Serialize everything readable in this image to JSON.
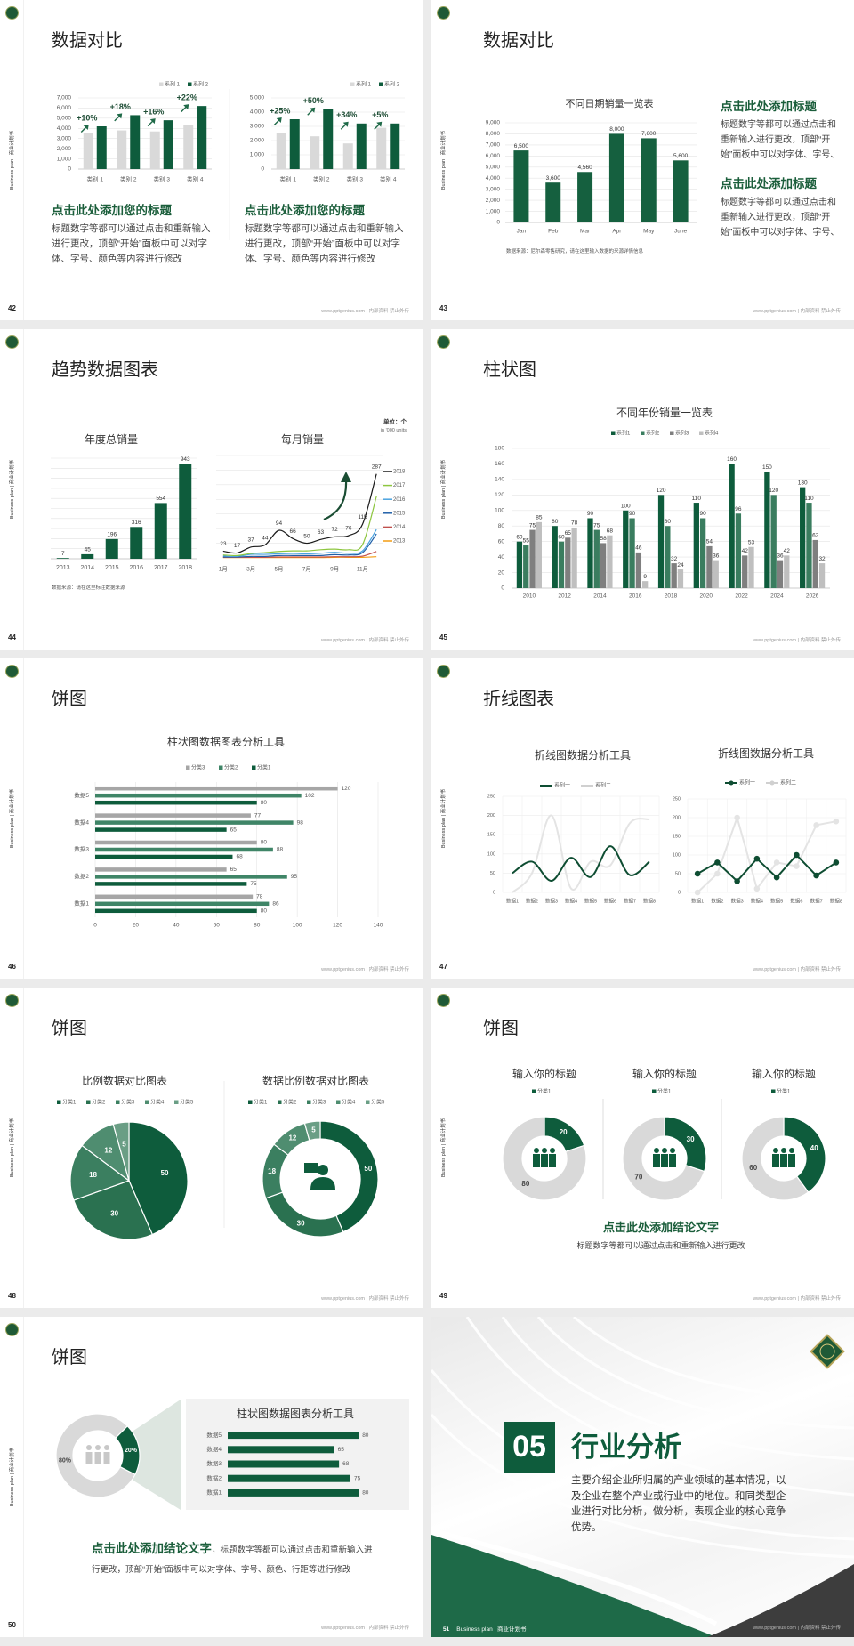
{
  "common": {
    "side_label": "Business plan | 商业计划书",
    "footer": "www.pptgenius.com | 内部资料 禁止外传"
  },
  "colors": {
    "brand_green": "#0e5c3c",
    "mid_green": "#3a7d5f",
    "gray": "#d9d9d9"
  },
  "slides": [
    {
      "page": "42",
      "title": "数据对比",
      "blocks": [
        {
          "heading": "点击此处添加您的标题",
          "body": "标题数字等都可以通过点击和重新输入进行更改，顶部“开始”面板中可以对字体、字号、颜色等内容进行修改"
        },
        {
          "heading": "点击此处添加您的标题",
          "body": "标题数字等都可以通过点击和重新输入进行更改，顶部“开始”面板中可以对字体、字号、颜色等内容进行修改"
        }
      ]
    },
    {
      "page": "43",
      "title": "数据对比",
      "source": "数据来源：尼尔森零售研究，请在这里输入数据的来源详情信息",
      "blocks": [
        {
          "heading": "点击此处添加标题",
          "body": "标题数字等都可以通过点击和重新输入进行更改，顶部“开始”面板中可以对字体、字号、颜色"
        },
        {
          "heading": "点击此处添加标题",
          "body": "标题数字等都可以通过点击和重新输入进行更改，顶部“开始”面板中可以对字体、字号、颜色"
        }
      ]
    },
    {
      "page": "44",
      "title": "趋势数据图表",
      "source": "数据来源：请在这里标注数据来源",
      "unit": "单位：个",
      "unit_en": "in '000 units"
    },
    {
      "page": "45",
      "title": "柱状图"
    },
    {
      "page": "46",
      "title": "饼图"
    },
    {
      "page": "47",
      "title": "折线图表"
    },
    {
      "page": "48",
      "title": "饼图"
    },
    {
      "page": "49",
      "title": "饼图",
      "conclusion": {
        "heading": "点击此处添加结论文字",
        "body": "标题数字等都可以通过点击和重新输入进行更改"
      }
    },
    {
      "page": "50",
      "title": "饼图",
      "conclusion": {
        "heading": "点击此处添加结论文字",
        "body": "，标题数字等都可以通过点击和重新输入进行更改，顶部“开始”面板中可以对字体、字号、颜色、行距等进行修改"
      }
    },
    {
      "page": "51",
      "number": "05",
      "title": "行业分析",
      "body": "主要介绍企业所归属的产业领域的基本情况，以及企业在整个产业或行业中的地位。和同类型企业进行对比分析，做分析，表现企业的核心竞争优势。"
    }
  ],
  "chart_data": [
    {
      "type": "bar",
      "categories": [
        "类别 1",
        "类别 2",
        "类别 3",
        "类别 4"
      ],
      "ylim": [
        0,
        7000
      ],
      "yticks": [
        "0",
        "1,000",
        "2,000",
        "3,000",
        "4,000",
        "5,000",
        "6,000",
        "7,000"
      ],
      "series": [
        {
          "name": "系列 1",
          "values": [
            3500,
            3800,
            3700,
            4300
          ],
          "color": "#d9d9d9"
        },
        {
          "name": "系列 2",
          "values": [
            4200,
            5300,
            4800,
            6200
          ],
          "color": "#0e5c3c"
        }
      ],
      "annotations": [
        "+10%",
        "+18%",
        "+16%",
        "+22%"
      ],
      "legend": "top-right"
    },
    {
      "type": "bar",
      "categories": [
        "类别 1",
        "类别 2",
        "类别 3",
        "类别 4"
      ],
      "ylim": [
        0,
        5000
      ],
      "yticks": [
        "0",
        "1,000",
        "2,000",
        "3,000",
        "4,000",
        "5,000"
      ],
      "series": [
        {
          "name": "系列 1",
          "values": [
            2500,
            2300,
            1800,
            2900
          ],
          "color": "#d9d9d9"
        },
        {
          "name": "系列 2",
          "values": [
            3500,
            4200,
            3200,
            3200
          ],
          "color": "#0e5c3c"
        }
      ],
      "annotations": [
        "+25%",
        "+50%",
        "+34%",
        "+5%"
      ],
      "legend": "top-right"
    },
    {
      "type": "bar",
      "title": "不同日期销量一览表",
      "categories": [
        "Jan",
        "Feb",
        "Mar",
        "Apr",
        "May",
        "June"
      ],
      "ylim": [
        0,
        9000
      ],
      "yticks": [
        "0",
        "1,000",
        "2,000",
        "3,000",
        "4,000",
        "5,000",
        "6,000",
        "7,000",
        "8,000",
        "9,000"
      ],
      "series": [
        {
          "values": [
            6500,
            3600,
            4560,
            8000,
            7600,
            5600
          ],
          "color": "#15603f"
        }
      ],
      "data_labels": [
        "6,500",
        "3,600",
        "4,560",
        "8,000",
        "7,600",
        "5,600"
      ]
    },
    {
      "type": "bar",
      "title": "年度总销量",
      "categories": [
        "2013",
        "2014",
        "2015",
        "2016",
        "2017",
        "2018"
      ],
      "ylim": [
        0,
        1000
      ],
      "grid": true,
      "series": [
        {
          "values": [
            7,
            45,
            196,
            316,
            554,
            943
          ],
          "color": "#0e5c3c"
        }
      ]
    },
    {
      "type": "line",
      "title": "每月销量",
      "x": [
        1,
        2,
        3,
        4,
        5,
        6,
        7,
        8,
        9,
        10,
        11,
        12
      ],
      "ylim": [
        0,
        350
      ],
      "xtick_values": [
        1,
        3,
        5,
        7,
        9,
        11
      ],
      "xtick_labels": [
        "1月",
        "3月",
        "5月",
        "7月",
        "9月",
        "11月"
      ],
      "series": [
        {
          "name": "2018",
          "color": "#1a1a1a",
          "values": [
            23,
            17,
            37,
            44,
            94,
            66,
            50,
            63,
            72,
            76,
            115,
            287
          ],
          "data_labels": true
        },
        {
          "name": "2017",
          "color": "#8dc63f",
          "values": [
            10,
            8,
            15,
            18,
            22,
            24,
            24,
            28,
            30,
            28,
            45,
            210
          ]
        },
        {
          "name": "2016",
          "color": "#4aa3df",
          "values": [
            6,
            5,
            12,
            12,
            14,
            15,
            14,
            16,
            19,
            16,
            24,
            97
          ]
        },
        {
          "name": "2015",
          "color": "#1f5fa8",
          "values": [
            3,
            3,
            5,
            5,
            8,
            8,
            8,
            8,
            11,
            10,
            18,
            82
          ]
        },
        {
          "name": "2014",
          "color": "#c0504d",
          "values": [
            2,
            2,
            2,
            2,
            3,
            3,
            3,
            3,
            4,
            4,
            6,
            22
          ]
        },
        {
          "name": "2013",
          "color": "#f39c12",
          "values": [
            1,
            1,
            1,
            1,
            1,
            1,
            1,
            1,
            2,
            2,
            2,
            4
          ]
        }
      ]
    },
    {
      "type": "bar",
      "title": "不同年份销量一览表",
      "categories": [
        "2010",
        "2012",
        "2014",
        "2016",
        "2018",
        "2020",
        "2022",
        "2024",
        "2026"
      ],
      "ylim": [
        0,
        180
      ],
      "yticks": [
        "0",
        "20",
        "40",
        "60",
        "80",
        "100",
        "120",
        "140",
        "160",
        "180"
      ],
      "legend": "top",
      "series": [
        {
          "name": "系列1",
          "color": "#0e5c3c",
          "values": [
            60,
            80,
            90,
            100,
            120,
            110,
            160,
            150,
            130
          ]
        },
        {
          "name": "系列2",
          "color": "#3a7d5f",
          "values": [
            55,
            60,
            75,
            90,
            80,
            90,
            96,
            120,
            110
          ]
        },
        {
          "name": "系列3",
          "color": "#7f7f7f",
          "values": [
            75,
            65,
            58,
            46,
            32,
            54,
            42,
            36,
            62
          ]
        },
        {
          "name": "系列4",
          "color": "#bfbfbf",
          "values": [
            85,
            78,
            68,
            9,
            24,
            36,
            53,
            42,
            32
          ]
        }
      ]
    },
    {
      "type": "bar",
      "orientation": "horizontal",
      "title": "柱状图数据图表分析工具",
      "categories": [
        "数据1",
        "数据2",
        "数据3",
        "数据4",
        "数据5"
      ],
      "xlim": [
        0,
        140
      ],
      "xticks": [
        "0",
        "20",
        "40",
        "60",
        "80",
        "100",
        "120",
        "140"
      ],
      "legend": "top",
      "series": [
        {
          "name": "分类3",
          "color": "#a6a6a6",
          "values": [
            78,
            65,
            80,
            77,
            120
          ]
        },
        {
          "name": "分类2",
          "color": "#3f8567",
          "values": [
            86,
            95,
            88,
            98,
            102
          ]
        },
        {
          "name": "分类1",
          "color": "#0e5c3c",
          "values": [
            80,
            75,
            68,
            65,
            80
          ]
        }
      ]
    },
    {
      "type": "line",
      "title": "折线图数据分析工具",
      "categories": [
        "数据1",
        "数据2",
        "数据3",
        "数据4",
        "数据5",
        "数据6",
        "数据7",
        "数据8"
      ],
      "ylim": [
        0,
        250
      ],
      "yticks": [
        "0",
        "50",
        "100",
        "150",
        "200",
        "250"
      ],
      "smooth": true,
      "series": [
        {
          "name": "系列一",
          "color": "#0e4d32",
          "values": [
            50,
            80,
            30,
            90,
            40,
            120,
            45,
            80
          ]
        },
        {
          "name": "系列二",
          "color": "#e4e4e4",
          "values": [
            0,
            50,
            200,
            10,
            80,
            70,
            180,
            190
          ]
        }
      ]
    },
    {
      "type": "line",
      "title": "折线图数据分析工具",
      "categories": [
        "数据1",
        "数据2",
        "数据3",
        "数据4",
        "数据5",
        "数据6",
        "数据7",
        "数据8"
      ],
      "ylim": [
        0,
        250
      ],
      "yticks": [
        "0",
        "50",
        "100",
        "150",
        "200",
        "250"
      ],
      "markers": true,
      "series": [
        {
          "name": "系列一",
          "color": "#0e4d32",
          "values": [
            50,
            80,
            30,
            90,
            40,
            100,
            45,
            80
          ]
        },
        {
          "name": "系列二",
          "color": "#e4e4e4",
          "values": [
            0,
            50,
            200,
            10,
            80,
            70,
            180,
            190
          ]
        }
      ]
    },
    {
      "type": "pie",
      "title": "比例数据对比图表",
      "categories": [
        "分类1",
        "分类2",
        "分类3",
        "分类4",
        "分类5"
      ],
      "values": [
        50,
        30,
        18,
        12,
        5
      ],
      "colors": [
        "#0e5c3c",
        "#2a7150",
        "#3b7f60",
        "#4f8d70",
        "#6a9e85"
      ]
    },
    {
      "type": "donut",
      "title": "数据比例数据对比图表",
      "categories": [
        "分类1",
        "分类2",
        "分类3",
        "分类4",
        "分类5"
      ],
      "values": [
        50,
        30,
        18,
        12,
        5
      ],
      "colors": [
        "#0e5c3c",
        "#2a7150",
        "#3b7f60",
        "#4f8d70",
        "#6a9e85"
      ]
    },
    {
      "type": "donut",
      "title": "输入你的标题",
      "legend": [
        "分类1"
      ],
      "values": [
        20,
        80
      ],
      "colors": [
        "#0e5c3c",
        "#d9d9d9"
      ]
    },
    {
      "type": "donut",
      "title": "输入你的标题",
      "legend": [
        "分类1"
      ],
      "values": [
        30,
        70
      ],
      "colors": [
        "#0e5c3c",
        "#d9d9d9"
      ]
    },
    {
      "type": "donut",
      "title": "输入你的标题",
      "legend": [
        "分类1"
      ],
      "values": [
        40,
        60
      ],
      "colors": [
        "#0e5c3c",
        "#d9d9d9"
      ]
    },
    {
      "type": "donut",
      "values": [
        20,
        80
      ],
      "labels": [
        "20%",
        "80%"
      ],
      "colors": [
        "#0e5c3c",
        "#d9d9d9"
      ]
    },
    {
      "type": "bar",
      "orientation": "horizontal",
      "title": "柱状图数据图表分析工具",
      "categories": [
        "数据1",
        "数据2",
        "数据3",
        "数据4",
        "数据5"
      ],
      "xlim": [
        0,
        100
      ],
      "series": [
        {
          "color": "#0e5c3c",
          "values": [
            80,
            75,
            68,
            65,
            80
          ]
        }
      ]
    }
  ]
}
